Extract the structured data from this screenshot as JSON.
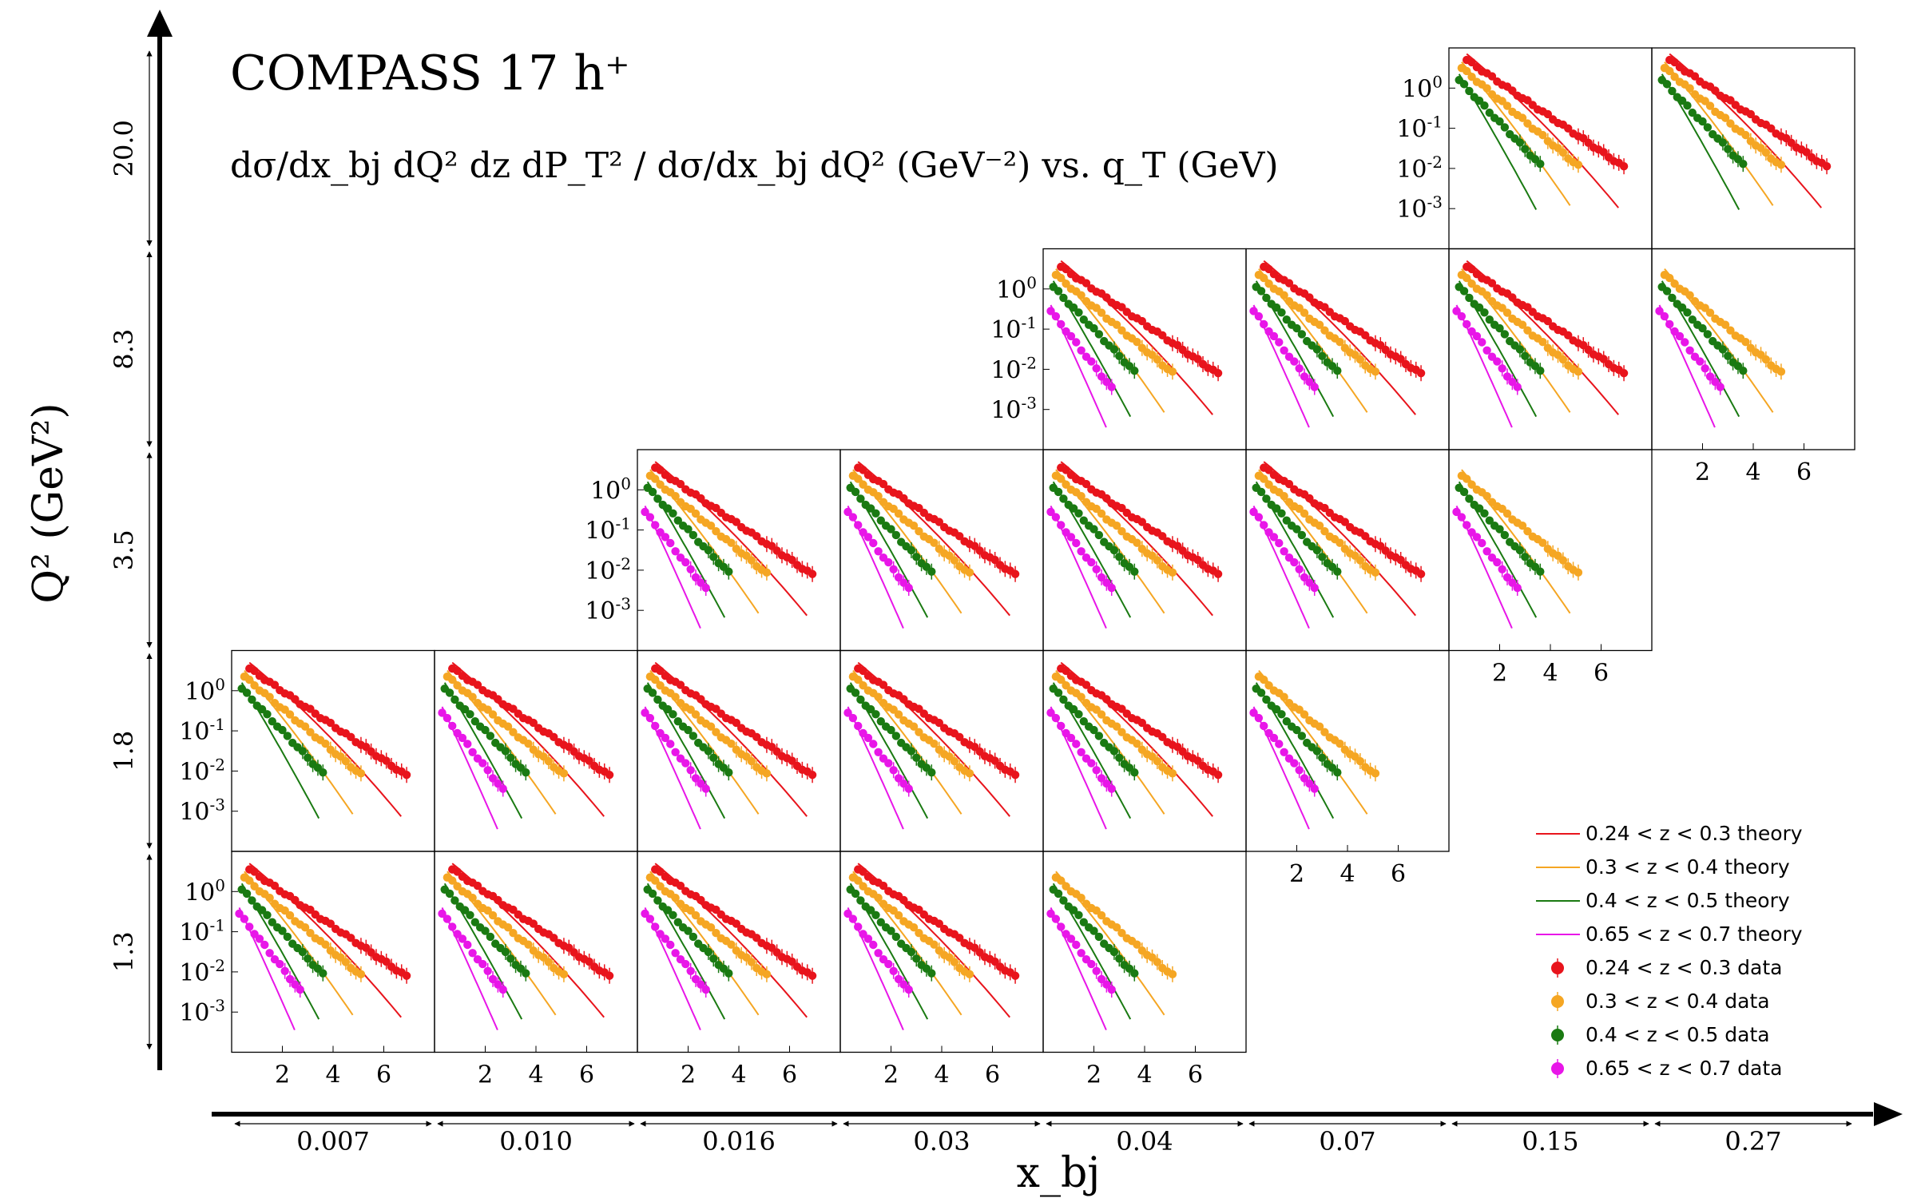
{
  "chart_data": {
    "type": "scatter",
    "title": "COMPASS 17 h⁺",
    "subtitle": "dσ/dx_bj dQ² dz dP_T² / dσ/dx_bj dQ² (GeV⁻²) vs. q_T (GeV)",
    "xlabel": "x_bj",
    "ylabel": "Q² (GeV²)",
    "x_bins": [
      "0.007",
      "0.010",
      "0.016",
      "0.03",
      "0.04",
      "0.07",
      "0.15",
      "0.27"
    ],
    "q2_bins": [
      "20.0",
      "8.3",
      "3.5",
      "1.8",
      "1.3"
    ],
    "panel_xlim": [
      0,
      8
    ],
    "panel_ylim_log10": [
      -4,
      1
    ],
    "y_scale": "log",
    "x_ticks": [
      "2",
      "4",
      "6"
    ],
    "y_ticks": [
      "10^0",
      "10^-1",
      "10^-2",
      "10^-3"
    ],
    "legend_location": "lower-right",
    "series": [
      {
        "name": "0.24 < z < 0.3 theory",
        "kind": "theory",
        "color": "#e8141c",
        "z_index": 0
      },
      {
        "name": "0.3 < z < 0.4 theory",
        "kind": "theory",
        "color": "#f5a623",
        "z_index": 1
      },
      {
        "name": "0.4 < z < 0.5 theory",
        "kind": "theory",
        "color": "#1a7a12",
        "z_index": 2
      },
      {
        "name": "0.65 < z < 0.7 theory",
        "kind": "theory",
        "color": "#e816e8",
        "z_index": 3
      },
      {
        "name": "0.24 < z < 0.3 data",
        "kind": "data",
        "color": "#e8141c",
        "z_index": 0
      },
      {
        "name": "0.3 < z < 0.4 data",
        "kind": "data",
        "color": "#f5a623",
        "z_index": 1
      },
      {
        "name": "0.4 < z < 0.5 data",
        "kind": "data",
        "color": "#1a7a12",
        "z_index": 2
      },
      {
        "name": "0.65 < z < 0.7 data",
        "kind": "data",
        "color": "#e816e8",
        "z_index": 3
      }
    ],
    "z_profiles": [
      {
        "z_index": 0,
        "start_log": 0.55,
        "data_slope": -0.43,
        "theory_slope": -0.52,
        "x_start": 0.7,
        "x_end": 7.0
      },
      {
        "z_index": 1,
        "start_log": 0.35,
        "data_slope": -0.53,
        "theory_slope": -0.75,
        "x_start": 0.5,
        "x_end": 5.0
      },
      {
        "z_index": 2,
        "start_log": 0.05,
        "data_slope": -0.66,
        "theory_slope": -1.05,
        "x_start": 0.4,
        "x_end": 3.6
      },
      {
        "z_index": 3,
        "start_log": -0.55,
        "data_slope": -0.8,
        "theory_slope": -1.35,
        "x_start": 0.3,
        "x_end": 2.6
      }
    ],
    "panels": [
      {
        "row": 0,
        "col": 6,
        "series": [
          0,
          1,
          2
        ],
        "y_ticks": true,
        "x_ticks": false
      },
      {
        "row": 0,
        "col": 7,
        "series": [
          0,
          1,
          2
        ],
        "y_ticks": false,
        "x_ticks": false
      },
      {
        "row": 1,
        "col": 4,
        "series": [
          0,
          1,
          2,
          3
        ],
        "y_ticks": true,
        "x_ticks": false
      },
      {
        "row": 1,
        "col": 5,
        "series": [
          0,
          1,
          2,
          3
        ],
        "y_ticks": false,
        "x_ticks": false
      },
      {
        "row": 1,
        "col": 6,
        "series": [
          0,
          1,
          2,
          3
        ],
        "y_ticks": false,
        "x_ticks": false
      },
      {
        "row": 1,
        "col": 7,
        "series": [
          1,
          2,
          3
        ],
        "y_ticks": false,
        "x_ticks": true
      },
      {
        "row": 2,
        "col": 2,
        "series": [
          0,
          1,
          2,
          3
        ],
        "y_ticks": true,
        "x_ticks": false
      },
      {
        "row": 2,
        "col": 3,
        "series": [
          0,
          1,
          2,
          3
        ],
        "y_ticks": false,
        "x_ticks": false
      },
      {
        "row": 2,
        "col": 4,
        "series": [
          0,
          1,
          2,
          3
        ],
        "y_ticks": false,
        "x_ticks": false
      },
      {
        "row": 2,
        "col": 5,
        "series": [
          0,
          1,
          2,
          3
        ],
        "y_ticks": false,
        "x_ticks": false
      },
      {
        "row": 2,
        "col": 6,
        "series": [
          1,
          2,
          3
        ],
        "y_ticks": false,
        "x_ticks": true
      },
      {
        "row": 3,
        "col": 0,
        "series": [
          0,
          1,
          2
        ],
        "y_ticks": true,
        "x_ticks": false
      },
      {
        "row": 3,
        "col": 1,
        "series": [
          0,
          1,
          2,
          3
        ],
        "y_ticks": false,
        "x_ticks": false
      },
      {
        "row": 3,
        "col": 2,
        "series": [
          0,
          1,
          2,
          3
        ],
        "y_ticks": false,
        "x_ticks": false
      },
      {
        "row": 3,
        "col": 3,
        "series": [
          0,
          1,
          2,
          3
        ],
        "y_ticks": false,
        "x_ticks": false
      },
      {
        "row": 3,
        "col": 4,
        "series": [
          0,
          1,
          2,
          3
        ],
        "y_ticks": false,
        "x_ticks": false
      },
      {
        "row": 3,
        "col": 5,
        "series": [
          1,
          2,
          3
        ],
        "y_ticks": false,
        "x_ticks": true
      },
      {
        "row": 4,
        "col": 0,
        "series": [
          0,
          1,
          2,
          3
        ],
        "y_ticks": true,
        "x_ticks": true
      },
      {
        "row": 4,
        "col": 1,
        "series": [
          0,
          1,
          2,
          3
        ],
        "y_ticks": false,
        "x_ticks": true
      },
      {
        "row": 4,
        "col": 2,
        "series": [
          0,
          1,
          2,
          3
        ],
        "y_ticks": false,
        "x_ticks": true
      },
      {
        "row": 4,
        "col": 3,
        "series": [
          0,
          1,
          2,
          3
        ],
        "y_ticks": false,
        "x_ticks": true
      },
      {
        "row": 4,
        "col": 4,
        "series": [
          1,
          2,
          3
        ],
        "y_ticks": false,
        "x_ticks": true
      }
    ]
  }
}
